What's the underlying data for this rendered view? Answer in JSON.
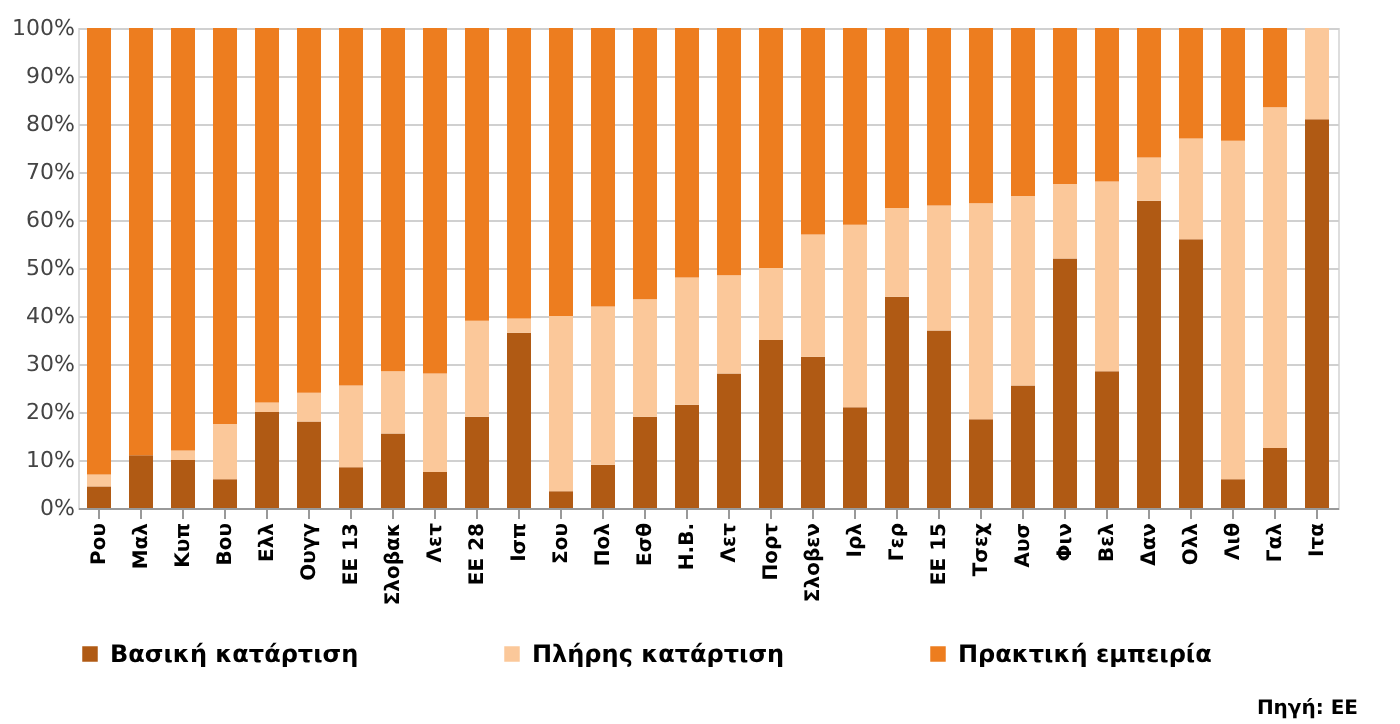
{
  "chart_data": {
    "type": "bar",
    "stacked": true,
    "categories": [
      "Ρου",
      "Μαλ",
      "Κυπ",
      "Βου",
      "Ελλ",
      "Ουγγ",
      "ΕΕ 13",
      "Σλοβακ",
      "Λετ",
      "ΕΕ 28",
      "Ισπ",
      "Σου",
      "Πολ",
      "Εσθ",
      "Η.Β.",
      "Λετ",
      "Πορτ",
      "Σλοβεν",
      "Ιρλ",
      "Γερ",
      "ΕΕ 15",
      "Τσεχ",
      "Αυσ",
      "Φιν",
      "Βελ",
      "Δαν",
      "Ολλ",
      "Λιθ",
      "Γαλ",
      "Ιτα"
    ],
    "series": [
      {
        "name": "Βασική κατάρτιση",
        "color": "#b05a14",
        "values": [
          4.5,
          11,
          10,
          6,
          20,
          18,
          8.5,
          15.5,
          7.5,
          19,
          36.5,
          3.5,
          9,
          19,
          21.5,
          28,
          35,
          31.5,
          21,
          44,
          37,
          18.5,
          25.5,
          52,
          28.5,
          64,
          56,
          6,
          12.5,
          81
        ]
      },
      {
        "name": "Πλήρης κατάρτιση",
        "color": "#fbc89a",
        "values": [
          2.5,
          0,
          2,
          11.5,
          2,
          6,
          17,
          13,
          20.5,
          20,
          3,
          36.5,
          33,
          24.5,
          26.5,
          20.5,
          15,
          25.5,
          38,
          18.5,
          26,
          45,
          39.5,
          15.5,
          39.5,
          9,
          21,
          70.5,
          71,
          19
        ]
      },
      {
        "name": "Πρακτική εμπειρία",
        "color": "#ed7d1f",
        "values": [
          93,
          89,
          88,
          82.5,
          78,
          76,
          74.5,
          71.5,
          72,
          61,
          60.5,
          60,
          58,
          56.5,
          52,
          51.5,
          50,
          43,
          41,
          37.5,
          37,
          36.5,
          35,
          32.5,
          32,
          27,
          23,
          23.5,
          16.5,
          0
        ]
      }
    ],
    "ylim": [
      0,
      100
    ],
    "yticks": [
      {
        "value": 0,
        "label": "0%"
      },
      {
        "value": 10,
        "label": "10%"
      },
      {
        "value": 20,
        "label": "20%"
      },
      {
        "value": 30,
        "label": "30%"
      },
      {
        "value": 40,
        "label": "40%"
      },
      {
        "value": 50,
        "label": "50%"
      },
      {
        "value": 60,
        "label": "60%"
      },
      {
        "value": 70,
        "label": "70%"
      },
      {
        "value": 80,
        "label": "80%"
      },
      {
        "value": 90,
        "label": "90%"
      },
      {
        "value": 100,
        "label": "100%"
      }
    ],
    "grid": "y",
    "legend": "bottom",
    "annotations": [
      "Πηγή: ΕΕ"
    ]
  }
}
